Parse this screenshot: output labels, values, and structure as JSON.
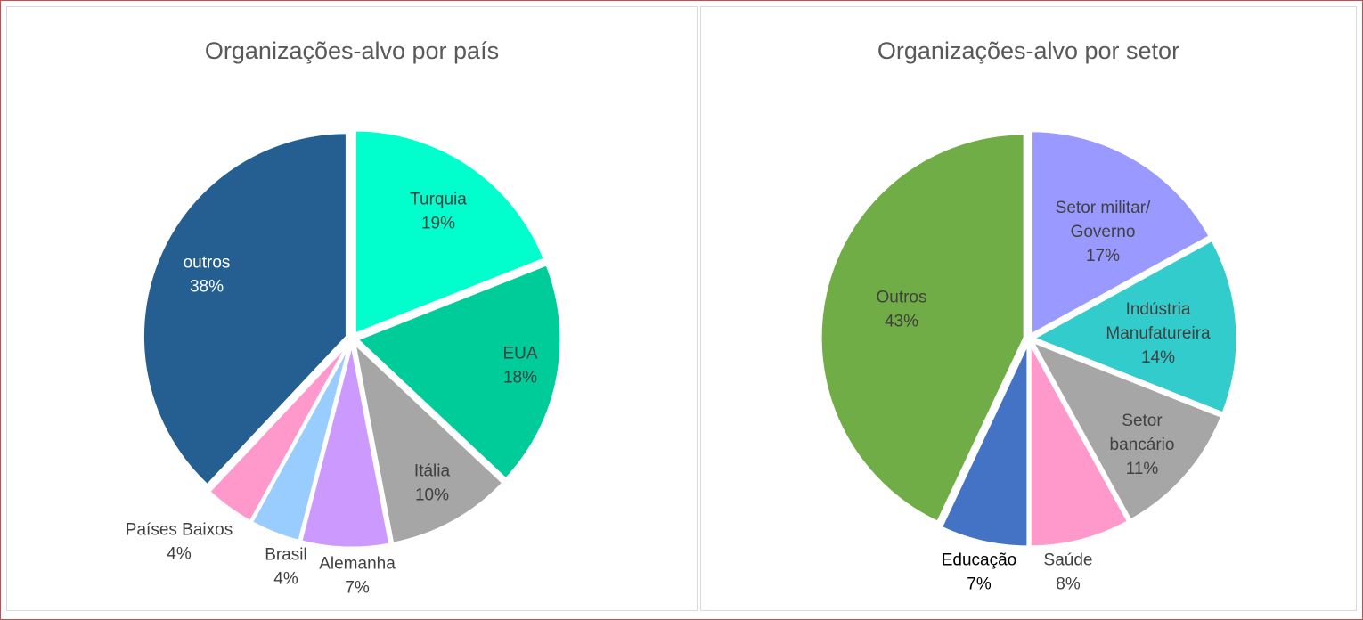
{
  "chart_data": [
    {
      "type": "pie",
      "title": "Organizações-alvo por país",
      "categories": [
        "Turquia",
        "EUA",
        "Itália",
        "Alemanha",
        "Brasil",
        "Países Baixos",
        "outros"
      ],
      "values": [
        19,
        18,
        10,
        7,
        4,
        4,
        38
      ],
      "value_labels": [
        "19%",
        "18%",
        "10%",
        "7%",
        "4%",
        "4%",
        "38%"
      ],
      "colors": [
        "#00ffcc",
        "#00cc99",
        "#a6a6a6",
        "#cc99ff",
        "#99ccff",
        "#ff99cc",
        "#255e91"
      ],
      "label_colors": [
        "#404040",
        "#404040",
        "#404040",
        "#404040",
        "#404040",
        "#404040",
        "#ffffff"
      ],
      "legend": "none"
    },
    {
      "type": "pie",
      "title": "Organizações-alvo por setor",
      "categories": [
        "Setor militar/ Governo",
        "Indústria Manufatureira",
        "Setor bancário",
        "Saúde",
        "Educação",
        "Outros"
      ],
      "value_labels": [
        "17%",
        "14%",
        "11%",
        "8%",
        "7%",
        "43%"
      ],
      "values": [
        17,
        14,
        11,
        8,
        7,
        43
      ],
      "colors": [
        "#9999ff",
        "#33cccc",
        "#a6a6a6",
        "#ff99cc",
        "#4472c4",
        "#70ad47"
      ],
      "label_colors": [
        "#404040",
        "#404040",
        "#404040",
        "#404040",
        "#000000",
        "#404040"
      ],
      "legend": "none"
    }
  ]
}
